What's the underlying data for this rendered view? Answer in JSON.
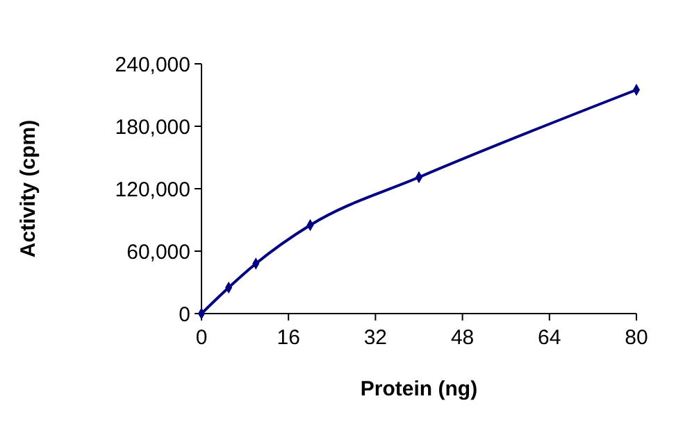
{
  "chart_data": {
    "type": "line",
    "xlabel": "Protein (ng)",
    "ylabel": "Activity (cpm)",
    "x": [
      0,
      5,
      10,
      20,
      40,
      80
    ],
    "series": [
      {
        "color": "#000080",
        "values": [
          0,
          25000,
          48000,
          85000,
          131000,
          215000
        ]
      }
    ],
    "xlim": [
      0,
      80
    ],
    "xticks": [
      0,
      16,
      32,
      48,
      64,
      80
    ],
    "ylim": [
      0,
      240000
    ],
    "yticks": [
      0,
      {
        "value": 60000,
        "label": "60,000"
      },
      {
        "value": 120000,
        "label": "120,000"
      },
      {
        "value": 180000,
        "label": "180,000"
      },
      {
        "value": 240000,
        "label": "240,000"
      }
    ],
    "grid": false,
    "marker": "diamond",
    "line_style": "solid"
  }
}
